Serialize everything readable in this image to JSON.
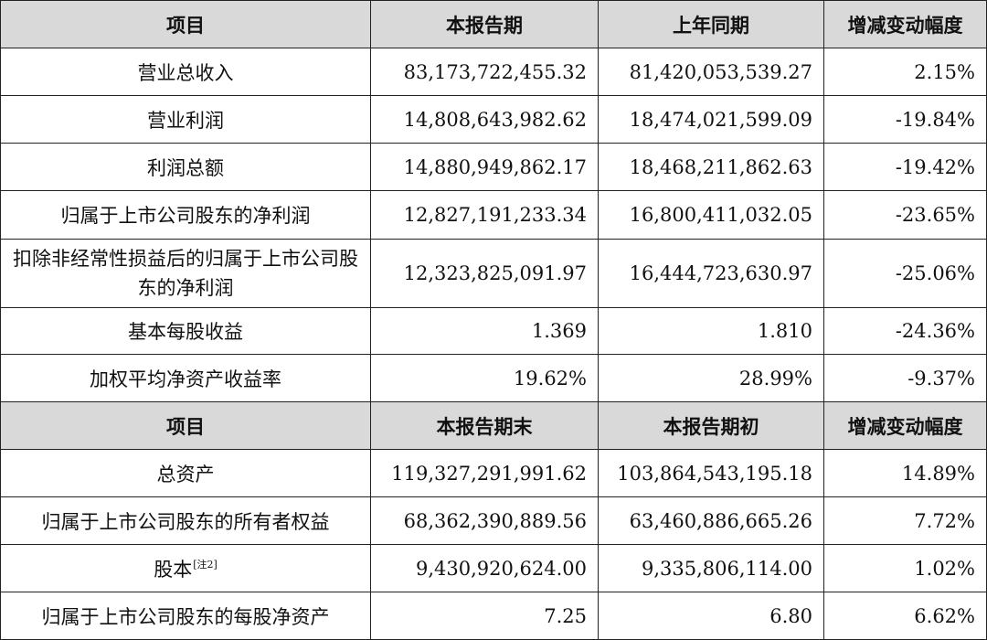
{
  "table": {
    "header1": [
      "项目",
      "本报告期",
      "上年同期",
      "增减变动幅度"
    ],
    "rows1": [
      [
        "营业总收入",
        "83,173,722,455.32",
        "81,420,053,539.27",
        "2.15%"
      ],
      [
        "营业利润",
        "14,808,643,982.62",
        "18,474,021,599.09",
        "-19.84%"
      ],
      [
        "利润总额",
        "14,880,949,862.17",
        "18,468,211,862.63",
        "-19.42%"
      ],
      [
        "归属于上市公司股东的净利润",
        "12,827,191,233.34",
        "16,800,411,032.05",
        "-23.65%"
      ],
      [
        "扣除非经常性损益后的归属于上市公司股东的净利润",
        "12,323,825,091.97",
        "16,444,723,630.97",
        "-25.06%"
      ],
      [
        "基本每股收益",
        "1.369",
        "1.810",
        "-24.36%"
      ],
      [
        "加权平均净资产收益率",
        "19.62%",
        "28.99%",
        "-9.37%"
      ]
    ],
    "header2": [
      "项目",
      "本报告期末",
      "本报告期初",
      "增减变动幅度"
    ],
    "rows2": [
      [
        "总资产",
        "119,327,291,991.62",
        "103,864,543,195.18",
        "14.89%"
      ],
      [
        "归属于上市公司股东的所有者权益",
        "68,362,390,889.56",
        "63,460,886,665.26",
        "7.72%"
      ],
      [
        "股本",
        "9,430,920,624.00",
        "9,335,806,114.00",
        "1.02%"
      ],
      [
        "归属于上市公司股东的每股净资产",
        "7.25",
        "6.80",
        "6.62%"
      ]
    ],
    "share_capital_note": "[注2]"
  }
}
